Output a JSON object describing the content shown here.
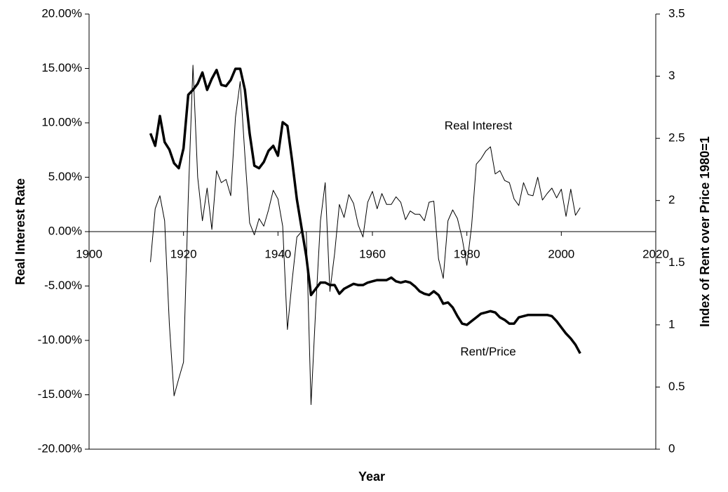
{
  "chart_data": {
    "type": "line",
    "x_label": "Year",
    "y_label": "Real Interest Rate",
    "y2_label": "Index of Rent over Price 1980=1",
    "x": [
      1913,
      1914,
      1915,
      1916,
      1917,
      1918,
      1919,
      1920,
      1921,
      1922,
      1923,
      1924,
      1925,
      1926,
      1927,
      1928,
      1929,
      1930,
      1931,
      1932,
      1933,
      1934,
      1935,
      1936,
      1937,
      1938,
      1939,
      1940,
      1941,
      1942,
      1943,
      1944,
      1945,
      1946,
      1947,
      1948,
      1949,
      1950,
      1951,
      1952,
      1953,
      1954,
      1955,
      1956,
      1957,
      1958,
      1959,
      1960,
      1961,
      1962,
      1963,
      1964,
      1965,
      1966,
      1967,
      1968,
      1969,
      1970,
      1971,
      1972,
      1973,
      1974,
      1975,
      1976,
      1977,
      1978,
      1979,
      1980,
      1981,
      1982,
      1983,
      1984,
      1985,
      1986,
      1987,
      1988,
      1989,
      1990,
      1991,
      1992,
      1993,
      1994,
      1995,
      1996,
      1997,
      1998,
      1999,
      2000,
      2001,
      2002,
      2003,
      2004
    ],
    "series": [
      {
        "name": "Real Interest",
        "color": "#000000",
        "axis": "y",
        "values": [
          -2.8,
          2.1,
          3.3,
          1.0,
          -8.5,
          -15.1,
          -13.5,
          -12.0,
          3.0,
          15.3,
          5.0,
          1.0,
          4.0,
          0.2,
          5.6,
          4.5,
          4.8,
          3.3,
          10.5,
          13.8,
          7.0,
          0.8,
          -0.3,
          1.2,
          0.5,
          2.0,
          3.8,
          3.0,
          0.5,
          -9.0,
          -4.5,
          -0.5,
          0,
          0,
          -15.9,
          -7.0,
          1.0,
          4.5,
          -5.5,
          -2.0,
          2.5,
          1.3,
          3.4,
          2.6,
          0.6,
          -0.5,
          2.7,
          3.7,
          2.1,
          3.5,
          2.5,
          2.5,
          3.2,
          2.7,
          1.1,
          1.9,
          1.6,
          1.6,
          1.0,
          2.7,
          2.8,
          -2.5,
          -4.3,
          1.0,
          2.0,
          1.2,
          -0.6,
          -3.1,
          0.5,
          6.2,
          6.7,
          7.4,
          7.8,
          5.3,
          5.6,
          4.7,
          4.5,
          3.0,
          2.4,
          4.5,
          3.4,
          3.3,
          5.0,
          2.9,
          3.5,
          4.0,
          3.1,
          3.9,
          1.4,
          3.9,
          1.5,
          2.2
        ]
      },
      {
        "name": "Rent/Price",
        "color": "#000000",
        "axis": "y2",
        "values": [
          2.54,
          2.44,
          2.68,
          2.47,
          2.41,
          2.3,
          2.26,
          2.42,
          2.85,
          2.89,
          2.94,
          3.03,
          2.89,
          2.98,
          3.05,
          2.93,
          2.92,
          2.97,
          3.06,
          3.06,
          2.89,
          2.54,
          2.28,
          2.26,
          2.31,
          2.4,
          2.44,
          2.36,
          2.63,
          2.6,
          2.32,
          2.01,
          1.78,
          1.55,
          1.24,
          1.29,
          1.34,
          1.34,
          1.32,
          1.32,
          1.25,
          1.29,
          1.31,
          1.33,
          1.32,
          1.32,
          1.34,
          1.35,
          1.36,
          1.36,
          1.36,
          1.38,
          1.35,
          1.34,
          1.35,
          1.34,
          1.31,
          1.27,
          1.25,
          1.24,
          1.27,
          1.24,
          1.17,
          1.18,
          1.14,
          1.07,
          1.01,
          1.0,
          1.03,
          1.06,
          1.09,
          1.1,
          1.11,
          1.1,
          1.06,
          1.04,
          1.01,
          1.01,
          1.06,
          1.07,
          1.08,
          1.08,
          1.08,
          1.08,
          1.08,
          1.07,
          1.03,
          0.98,
          0.93,
          0.89,
          0.84,
          0.77
        ]
      }
    ],
    "xlim": [
      1900,
      2020
    ],
    "xticks": [
      1900,
      1920,
      1940,
      1960,
      1980,
      2000,
      2020
    ],
    "ylim": [
      -20,
      20
    ],
    "yticks": [
      {
        "value": -20,
        "label": "-20.00%"
      },
      {
        "value": -15,
        "label": "-15.00%"
      },
      {
        "value": -10,
        "label": "-10.00%"
      },
      {
        "value": -5,
        "label": "-5.00%"
      },
      {
        "value": 0,
        "label": "0.00%"
      },
      {
        "value": 5,
        "label": "5.00%"
      },
      {
        "value": 10,
        "label": "10.00%"
      },
      {
        "value": 15,
        "label": "15.00%"
      },
      {
        "value": 20,
        "label": "20.00%"
      }
    ],
    "y2lim": [
      0,
      3.5
    ],
    "y2ticks": [
      0,
      0.5,
      1,
      1.5,
      2,
      2.5,
      3,
      3.5
    ],
    "grid": false
  }
}
